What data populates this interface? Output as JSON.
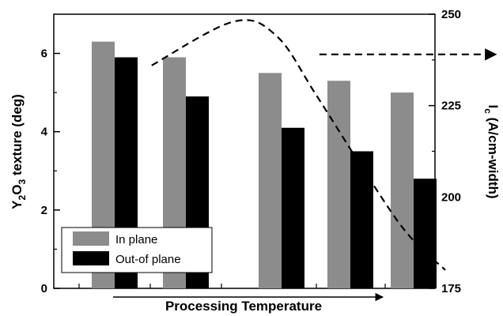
{
  "chart_data": {
    "type": "bar",
    "categories": [
      "",
      "",
      "",
      "",
      ""
    ],
    "series": [
      {
        "name": "In plane",
        "values": [
          6.3,
          5.9,
          5.5,
          5.3,
          5.0
        ],
        "color": "#8c8c8c"
      },
      {
        "name": "Out-of plane",
        "values": [
          5.9,
          4.9,
          4.1,
          3.5,
          2.8
        ],
        "color": "#000000"
      }
    ],
    "ylim": [
      0,
      7
    ],
    "y_ticks": [
      "0",
      "2",
      "4",
      "6"
    ],
    "y2lim": [
      175,
      250
    ],
    "y2_ticks": [
      "175",
      "200",
      "225",
      "250"
    ],
    "xlabel": "Processing Temperature",
    "ylabel": {
      "main": "Y",
      "sub1": "2",
      "mid": "O",
      "sub2": "3",
      "rest": " texture (deg)"
    },
    "y2label": {
      "main": "I",
      "sub": "c",
      "rest": " (A/cm-width)"
    },
    "legend": {
      "position": "bottom-left",
      "entries": [
        "In plane",
        "Out-of plane"
      ]
    },
    "ic_curve": {
      "style": "dashed",
      "x": [
        0.52,
        1.5,
        1.95,
        2.5,
        3.3,
        3.9,
        4.5
      ],
      "y": [
        236,
        248,
        244,
        228,
        205,
        190,
        180
      ]
    },
    "ic_plateau": {
      "x_start": 2.55,
      "x_end": 5.3,
      "y": 239
    }
  }
}
